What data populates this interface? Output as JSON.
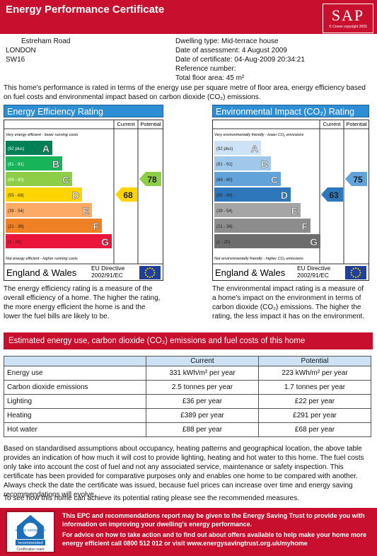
{
  "header": {
    "title": "Energy Performance Certificate",
    "logo": "SAP",
    "copyright": "© Crown copyright 2005"
  },
  "address": [
    "Estreham Road",
    "LONDON",
    "SW16"
  ],
  "details": [
    "Dwelling type: Mid-terrace house",
    "Date of assessment: 4 August 2009",
    "Date of certificate: 04-Aug-2009 20:34:21",
    "Reference number:",
    "Total floor area: 45 m²"
  ],
  "intro": "This home's performance is rated in terms of the energy use per square metre of floor area, energy efficiency based on fuel costs and environmental impact based on carbon dioxide (CO₂) emissions.",
  "ratings": [
    {
      "title": "Energy Efficiency Rating",
      "current_label": "Current",
      "potential_label": "Potential",
      "top_note": "Very energy efficient - lower running costs",
      "bottom_note": "Not energy efficient - higher running costs",
      "bands": [
        {
          "range": "(92 plus)",
          "letter": "A",
          "color": "#008054"
        },
        {
          "range": "(81 - 91)",
          "letter": "B",
          "color": "#19b459"
        },
        {
          "range": "(69 - 80)",
          "letter": "C",
          "color": "#8dce46"
        },
        {
          "range": "(55 - 68)",
          "letter": "D",
          "color": "#ffd500"
        },
        {
          "range": "(39 - 54)",
          "letter": "E",
          "color": "#fcaa65"
        },
        {
          "range": "(21 - 38)",
          "letter": "F",
          "color": "#ef8023"
        },
        {
          "range": "(1 - 20)",
          "letter": "G",
          "color": "#e9153b"
        }
      ],
      "current": 68,
      "potential": 78,
      "region": "England & Wales",
      "directive": [
        "EU Directive",
        "2002/91/EC"
      ],
      "description": "The energy efficiency rating is a measure of the overall efficiency of a home. The higher the rating, the more energy efficient the home is and the lower the fuel bills are likely to be."
    },
    {
      "title": "Environmental Impact (CO₂) Rating",
      "current_label": "Current",
      "potential_label": "Potential",
      "top_note": "Very environmentally friendly - lower CO₂ emissions",
      "bottom_note": "Not environmentally friendly - higher CO₂ emissions",
      "bands": [
        {
          "range": "(92 plus)",
          "letter": "A",
          "color": "#cde3f5"
        },
        {
          "range": "(81 - 91)",
          "letter": "B",
          "color": "#9fc8ea"
        },
        {
          "range": "(69 - 80)",
          "letter": "C",
          "color": "#62a3d9"
        },
        {
          "range": "(55 - 68)",
          "letter": "D",
          "color": "#2e77bb"
        },
        {
          "range": "(39 - 54)",
          "letter": "E",
          "color": "#a5a5a5"
        },
        {
          "range": "(21 - 38)",
          "letter": "F",
          "color": "#8c8c8c"
        },
        {
          "range": "(1 - 20)",
          "letter": "G",
          "color": "#6d6d6d"
        }
      ],
      "current": 63,
      "potential": 75,
      "region": "England & Wales",
      "directive": [
        "EU Directive",
        "2002/91/EC"
      ],
      "description": "The environmental impact rating is a measure of a home's impact on the environment in terms of carbon dioxide (CO₂) emissions. The higher the rating, the less impact it has on the environment."
    }
  ],
  "section_title": "Estimated energy use, carbon dioxide (CO₂) emissions and fuel costs of this home",
  "table": {
    "columns": [
      "Current",
      "Potential"
    ],
    "rows": [
      [
        "Energy use",
        "331 kWh/m² per year",
        "223 kWh/m² per year"
      ],
      [
        "Carbon dioxide emissions",
        "2.5 tonnes per year",
        "1.7 tonnes per year"
      ],
      [
        "Lighting",
        "£36 per year",
        "£22 per year"
      ],
      [
        "Heating",
        "£389 per year",
        "£291 per year"
      ],
      [
        "Hot water",
        "£88 per year",
        "£68 per year"
      ]
    ]
  },
  "notes": [
    "Based on standardised assumptions about occupancy, heating patterns and geographical location, the above table provides an indication of how much it will cost to provide lighting, heating and hot water to this home. The fuel costs only take into account the cost of fuel and not any associated service, maintenance or safety inspection. This certificate has been provided for comparative purposes only and enables one home to be compared with another. Always check the date the certificate was issued, because fuel prices can increase over time and energy saving recommendations will evolve.",
    "To see how this home can achieve its potential rating please see the recommended measures."
  ],
  "footer": {
    "logo": [
      "energy saving trust",
      "recommended",
      "Certification mark"
    ],
    "text": [
      "This EPC and recommendations report may be given to the Energy Saving Trust to provide you with information on improving your dwelling's energy performance.",
      "For advice on how to take action and to find out about offers available to help make your home more energy efficient call 0800 512 012 or visit www.energysavingtrust.org.uk/myhome"
    ]
  }
}
